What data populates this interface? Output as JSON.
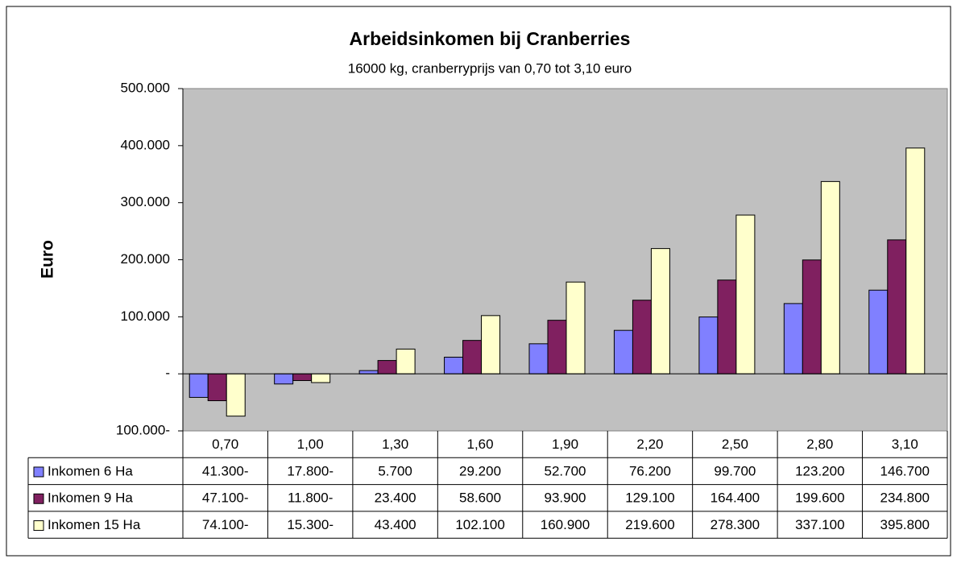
{
  "chart_data": {
    "type": "bar",
    "title": "Arbeidsinkomen bij Cranberries",
    "subtitle": "16000 kg, cranberryprijs van 0,70 tot  3,10 euro",
    "y_label": "Euro",
    "categories": [
      "0,70",
      "1,00",
      "1,30",
      "1,60",
      "1,90",
      "2,20",
      "2,50",
      "2,80",
      "3,10"
    ],
    "series": [
      {
        "name": "Inkomen 6 Ha",
        "color": "#8080ff",
        "values": [
          -41300,
          -17800,
          5700,
          29200,
          52700,
          76200,
          99700,
          123200,
          146700
        ],
        "value_labels": [
          "41.300-",
          "17.800-",
          "5.700",
          "29.200",
          "52.700",
          "76.200",
          "99.700",
          "123.200",
          "146.700"
        ]
      },
      {
        "name": "Inkomen 9 Ha",
        "color": "#802060",
        "values": [
          -47100,
          -11800,
          23400,
          58600,
          93900,
          129100,
          164400,
          199600,
          234800
        ],
        "value_labels": [
          "47.100-",
          "11.800-",
          "23.400",
          "58.600",
          "93.900",
          "129.100",
          "164.400",
          "199.600",
          "234.800"
        ]
      },
      {
        "name": "Inkomen 15 Ha",
        "color": "#ffffcc",
        "values": [
          -74100,
          -15300,
          43400,
          102100,
          160900,
          219600,
          278300,
          337100,
          395800
        ],
        "value_labels": [
          "74.100-",
          "15.300-",
          "43.400",
          "102.100",
          "160.900",
          "219.600",
          "278.300",
          "337.100",
          "395.800"
        ]
      }
    ],
    "ylim": [
      -100000,
      500000
    ],
    "yticks": [
      {
        "value": -100000,
        "label": "100.000-"
      },
      {
        "value": 0,
        "label": "-"
      },
      {
        "value": 100000,
        "label": "100.000"
      },
      {
        "value": 200000,
        "label": "200.000"
      },
      {
        "value": 300000,
        "label": "300.000"
      },
      {
        "value": 400000,
        "label": "400.000"
      },
      {
        "value": 500000,
        "label": "500.000"
      }
    ],
    "grid": false,
    "plot_background": "#c0c0c0"
  }
}
